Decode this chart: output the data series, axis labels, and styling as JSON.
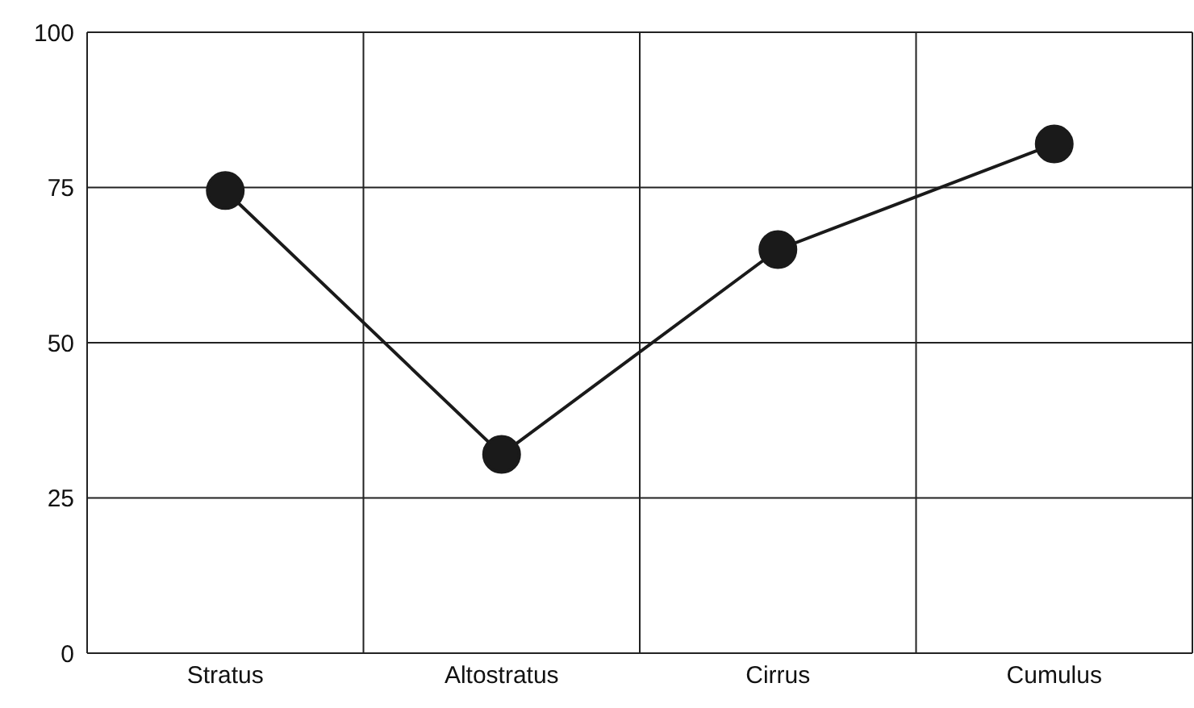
{
  "chart_data": {
    "type": "line",
    "categories": [
      "Stratus",
      "Altostratus",
      "Cirrus",
      "Cumulus"
    ],
    "series": [
      {
        "color": "#1a1a1a",
        "values": [
          74.5,
          32,
          65,
          82
        ]
      }
    ],
    "ylim": [
      0,
      100
    ],
    "yticks": [
      0,
      25,
      50,
      75,
      100
    ],
    "grid": true,
    "marker": "circle",
    "line_style": "solid"
  }
}
